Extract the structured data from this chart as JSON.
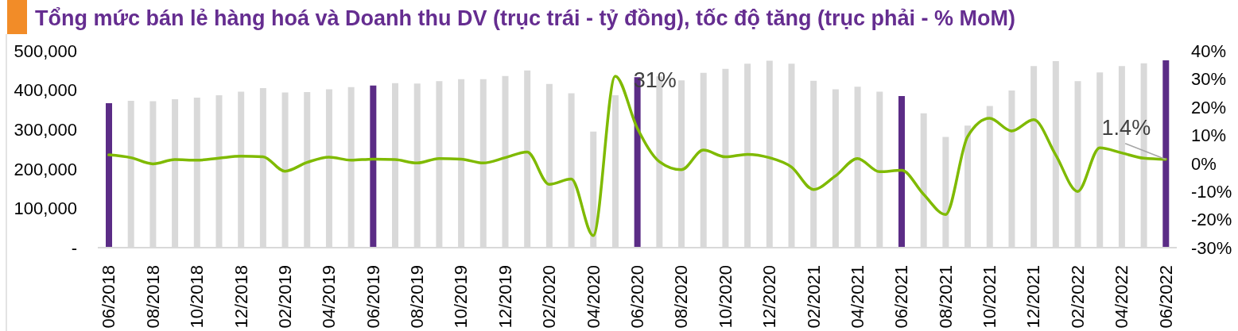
{
  "chart_data": {
    "type": "bar",
    "title": "Tổng mức bán lẻ hàng hoá và Doanh thu DV (trục trái - tỷ đồng), tốc độ tăng (trục phải - % MoM)",
    "categories": [
      "06/2018",
      null,
      "08/2018",
      null,
      "10/2018",
      null,
      "12/2018",
      null,
      "02/2019",
      null,
      "04/2019",
      null,
      "06/2019",
      null,
      "08/2019",
      null,
      "10/2019",
      null,
      "12/2019",
      null,
      "02/2020",
      null,
      "04/2020",
      null,
      "06/2020",
      null,
      "08/2020",
      null,
      "10/2020",
      null,
      "12/2020",
      null,
      "02/2021",
      null,
      "04/2021",
      null,
      "06/2021",
      null,
      "08/2021",
      null,
      "10/2021",
      null,
      "12/2021",
      null,
      "02/2022",
      null,
      "04/2022",
      null,
      "06/2022"
    ],
    "series": [
      {
        "values": [
          367000,
          373000,
          372000,
          377000,
          381000,
          387000,
          396000,
          405000,
          394000,
          395000,
          402000,
          408000,
          412000,
          418000,
          417000,
          423000,
          428000,
          428000,
          436000,
          450000,
          416000,
          392000,
          295000,
          387000,
          433000,
          435000,
          425000,
          444000,
          454000,
          467000,
          475000,
          467000,
          424000,
          402000,
          409000,
          396000,
          385000,
          341000,
          281000,
          310000,
          360000,
          399000,
          461000,
          474000,
          423000,
          445000,
          461000,
          468000,
          476000
        ],
        "colors": [
          "#5b2c86",
          "#d9d9d9",
          "#d9d9d9",
          "#d9d9d9",
          "#d9d9d9",
          "#d9d9d9",
          "#d9d9d9",
          "#d9d9d9",
          "#d9d9d9",
          "#d9d9d9",
          "#d9d9d9",
          "#d9d9d9",
          "#5b2c86",
          "#d9d9d9",
          "#d9d9d9",
          "#d9d9d9",
          "#d9d9d9",
          "#d9d9d9",
          "#d9d9d9",
          "#d9d9d9",
          "#d9d9d9",
          "#d9d9d9",
          "#d9d9d9",
          "#d9d9d9",
          "#5b2c86",
          "#d9d9d9",
          "#d9d9d9",
          "#d9d9d9",
          "#d9d9d9",
          "#d9d9d9",
          "#d9d9d9",
          "#d9d9d9",
          "#d9d9d9",
          "#d9d9d9",
          "#d9d9d9",
          "#d9d9d9",
          "#5b2c86",
          "#d9d9d9",
          "#d9d9d9",
          "#d9d9d9",
          "#d9d9d9",
          "#d9d9d9",
          "#d9d9d9",
          "#d9d9d9",
          "#d9d9d9",
          "#d9d9d9",
          "#d9d9d9",
          "#d9d9d9",
          "#5b2c86"
        ]
      },
      {
        "type": "line",
        "axis": "y2",
        "color": "#7fba00",
        "values": [
          3.0,
          2.0,
          -0.2,
          1.3,
          1.1,
          1.8,
          2.5,
          2.3,
          -2.8,
          0.3,
          2.2,
          1.1,
          1.5,
          1.3,
          0.1,
          1.7,
          1.5,
          0.1,
          2.0,
          4.0,
          -7.5,
          -5.6,
          -25.7,
          31,
          12.5,
          0.6,
          -2.3,
          4.7,
          2.3,
          3.2,
          2.0,
          -1.3,
          -9.3,
          -4.5,
          1.7,
          -3.0,
          -2.5,
          -11,
          -18.2,
          9.5,
          16,
          11.5,
          15.5,
          3.0,
          -10,
          5.5,
          3.7,
          1.8,
          1.4
        ],
        "value_labels": [
          null,
          null,
          null,
          null,
          null,
          null,
          null,
          null,
          null,
          null,
          null,
          null,
          null,
          null,
          null,
          null,
          null,
          null,
          null,
          null,
          null,
          null,
          null,
          "31%",
          null,
          null,
          null,
          null,
          null,
          null,
          null,
          null,
          null,
          null,
          null,
          null,
          null,
          null,
          null,
          null,
          null,
          null,
          null,
          null,
          null,
          null,
          null,
          null,
          "1.4%"
        ]
      }
    ],
    "ylim": [
      0,
      500000
    ],
    "yticks": [
      {
        "value": 0,
        "label": "-"
      },
      {
        "value": 100000,
        "label": "100,000"
      },
      {
        "value": 200000,
        "label": "200,000"
      },
      {
        "value": 300000,
        "label": "300,000"
      },
      {
        "value": 400000,
        "label": "400,000"
      },
      {
        "value": 500000,
        "label": "500,000"
      }
    ],
    "y2lim": [
      -30,
      40
    ],
    "y2ticks": [
      {
        "value": -30,
        "label": "-30%"
      },
      {
        "value": -20,
        "label": "-20%"
      },
      {
        "value": -10,
        "label": "-10%"
      },
      {
        "value": 0,
        "label": "0%"
      },
      {
        "value": 10,
        "label": "10%"
      },
      {
        "value": 20,
        "label": "20%"
      },
      {
        "value": 30,
        "label": "30%"
      },
      {
        "value": 40,
        "label": "40%"
      }
    ],
    "marker": "none"
  }
}
